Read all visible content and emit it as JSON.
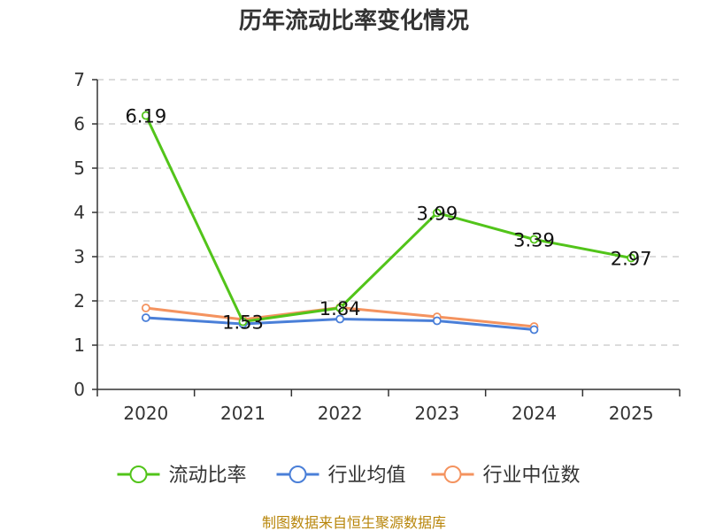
{
  "chart_data": {
    "type": "line",
    "title": "历年流动比率变化情况",
    "categories": [
      "2020",
      "2021",
      "2022",
      "2023",
      "2024",
      "2025"
    ],
    "ylim": [
      0,
      7
    ],
    "yticks": [
      "0",
      "1",
      "2",
      "3",
      "4",
      "5",
      "6",
      "7"
    ],
    "grid": true,
    "legend_position": "bottom",
    "series": [
      {
        "name": "流动比率",
        "color": "#52c41a",
        "values": [
          6.19,
          1.53,
          1.84,
          3.99,
          3.39,
          2.97
        ],
        "labels": [
          "6.19",
          "1.53",
          "1.84",
          "3.99",
          "3.39",
          "2.97"
        ]
      },
      {
        "name": "行业均值",
        "color": "#4a7fd8",
        "values": [
          1.62,
          1.48,
          1.59,
          1.55,
          1.35,
          null
        ]
      },
      {
        "name": "行业中位数",
        "color": "#f4935f",
        "values": [
          1.84,
          1.58,
          1.85,
          1.64,
          1.42,
          null
        ]
      }
    ]
  },
  "source": "制图数据来自恒生聚源数据库"
}
